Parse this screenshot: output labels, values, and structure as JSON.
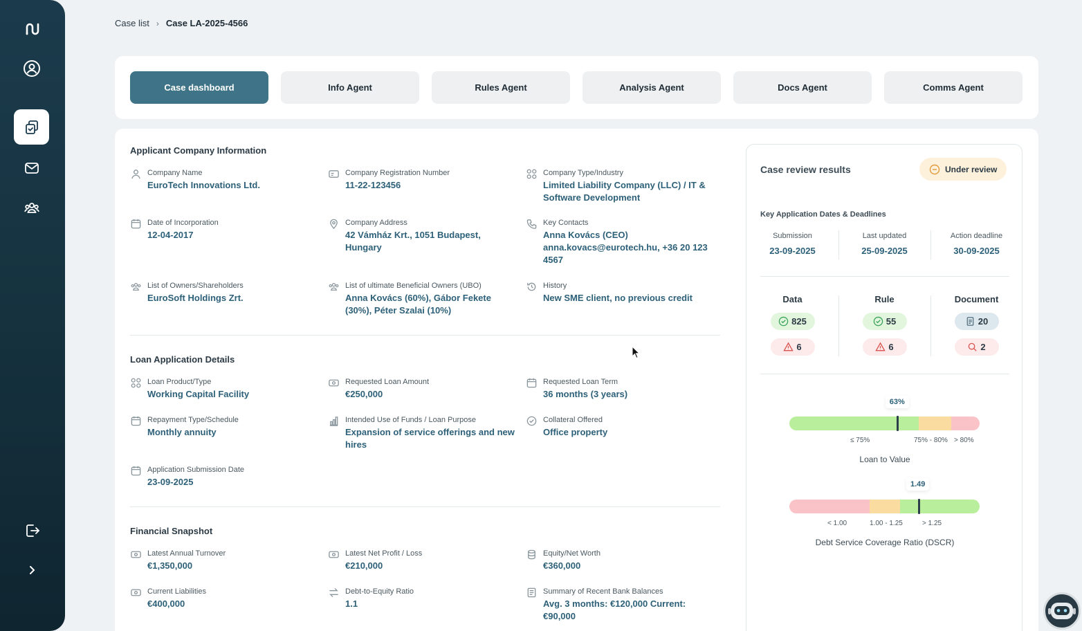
{
  "sidebar": {
    "items": [
      {
        "icon": "logo-icon"
      },
      {
        "icon": "user-circle-icon"
      },
      {
        "icon": "cases-icon",
        "active": true
      },
      {
        "icon": "mail-icon"
      },
      {
        "icon": "team-icon"
      },
      {
        "icon": "logout-icon"
      },
      {
        "icon": "chevron-right-icon"
      }
    ]
  },
  "breadcrumb": {
    "parent": "Case list",
    "current": "Case LA-2025-4566"
  },
  "tabs": [
    "Case dashboard",
    "Info Agent",
    "Rules Agent",
    "Analysis Agent",
    "Docs Agent",
    "Comms Agent"
  ],
  "company": {
    "title": "Applicant Company Information",
    "fields": [
      {
        "label": "Company Name",
        "value": "EuroTech Innovations Ltd.",
        "icon": "person-icon"
      },
      {
        "label": "Company Registration Number",
        "value": "11-22-123456",
        "icon": "id-card-icon"
      },
      {
        "label": "Company Type/Industry",
        "value": "Limited Liability Company (LLC) / IT & Software Development",
        "icon": "grid-icon"
      },
      {
        "label": "Date of Incorporation",
        "value": "12-04-2017",
        "icon": "calendar-icon"
      },
      {
        "label": "Company Address",
        "value": "42 Vámház Krt., 1051 Budapest, Hungary",
        "icon": "location-icon"
      },
      {
        "label": "Key Contacts",
        "value": "Anna Kovács (CEO) anna.kovacs@eurotech.hu, +36 20 123 4567",
        "icon": "phone-icon"
      },
      {
        "label": "List of Owners/Shareholders",
        "value": "EuroSoft Holdings Zrt.",
        "icon": "group-icon"
      },
      {
        "label": "List of ultimate Beneficial Owners (UBO)",
        "value": "Anna Kovács (60%), Gábor Fekete (30%), Péter Szalai (10%)",
        "icon": "group-icon"
      },
      {
        "label": "History",
        "value": "New SME client, no previous credit",
        "icon": "history-icon"
      }
    ]
  },
  "loan": {
    "title": "Loan Application Details",
    "fields": [
      {
        "label": "Loan Product/Type",
        "value": "Working Capital Facility",
        "icon": "grid-icon"
      },
      {
        "label": "Requested Loan Amount",
        "value": "€250,000",
        "icon": "money-icon"
      },
      {
        "label": "Requested Loan Term",
        "value": "36 months (3 years)",
        "icon": "calendar-icon"
      },
      {
        "label": "Repayment Type/Schedule",
        "value": "Monthly annuity",
        "icon": "calendar-icon"
      },
      {
        "label": "Intended Use of Funds / Loan Purpose",
        "value": "Expansion of service offerings and new hires",
        "icon": "chart-icon"
      },
      {
        "label": "Collateral Offered",
        "value": "Office property",
        "icon": "check-badge-icon"
      },
      {
        "label": "Application Submission Date",
        "value": "23-09-2025",
        "icon": "calendar-icon"
      }
    ]
  },
  "financial": {
    "title": "Financial Snapshot",
    "fields": [
      {
        "label": "Latest Annual Turnover",
        "value": "€1,350,000",
        "icon": "money-icon"
      },
      {
        "label": "Latest Net Profit / Loss",
        "value": "€210,000",
        "icon": "money-icon"
      },
      {
        "label": "Equity/Net Worth",
        "value": "€360,000",
        "icon": "database-icon"
      },
      {
        "label": "Current Liabilities",
        "value": "€400,000",
        "icon": "money-icon"
      },
      {
        "label": "Debt-to-Equity Ratio",
        "value": "1.1",
        "icon": "swap-icon"
      },
      {
        "label": "Summary of Recent Bank Balances",
        "value": "Avg. 3 months: €120,000 Current: €90,000",
        "icon": "document-icon"
      }
    ]
  },
  "review": {
    "title": "Case review results",
    "status": "Under review",
    "dates_title": "Key Application Dates & Deadlines",
    "dates": [
      {
        "label": "Submission",
        "value": "23-09-2025"
      },
      {
        "label": "Last updated",
        "value": "25-09-2025"
      },
      {
        "label": "Action deadline",
        "value": "30-09-2025"
      }
    ],
    "counts": [
      {
        "label": "Data",
        "ok": "825",
        "issues": "6"
      },
      {
        "label": "Rule",
        "ok": "55",
        "issues": "6"
      },
      {
        "label": "Document",
        "ok": "20",
        "issues": "2"
      }
    ],
    "ltv": {
      "title": "Loan to Value",
      "value": "63%",
      "value_fraction": 0.57,
      "ticks": [
        "≤ 75%",
        "75% - 80%",
        "> 80%"
      ],
      "colors": [
        "#b8ee9c",
        "#fbdca0",
        "#f9c3c8"
      ]
    },
    "dscr": {
      "title": "Debt Service Coverage Ratio (DSCR)",
      "value": "1.49",
      "value_fraction": 0.68,
      "ticks": [
        "< 1.00",
        "1.00 - 1.25",
        "> 1.25"
      ],
      "colors": [
        "#f9c3c8",
        "#fbdca0",
        "#b8ee9c"
      ]
    }
  }
}
